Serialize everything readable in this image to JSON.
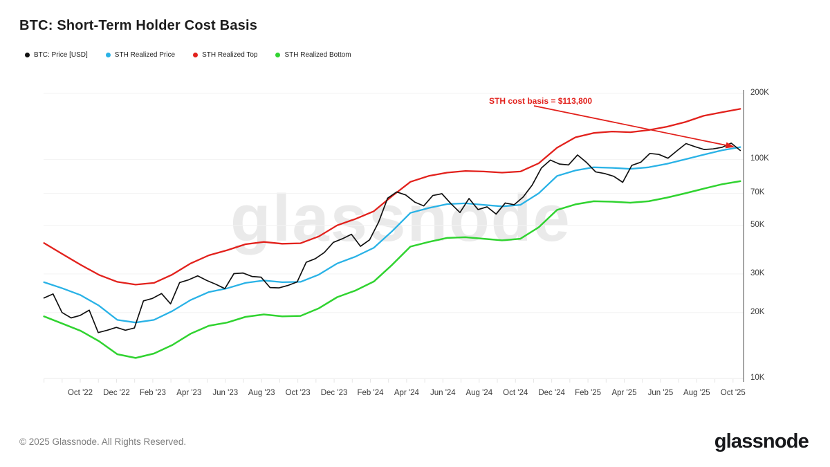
{
  "title": "BTC: Short-Term Holder Cost Basis",
  "watermark": "glassnode",
  "footer": {
    "copyright": "© 2025 Glassnode. All Rights Reserved.",
    "logo_text": "glassnode"
  },
  "chart_data": {
    "type": "line",
    "title": "BTC: Short-Term Holder Cost Basis",
    "x_unit": "months since Aug 2022",
    "y_axis": {
      "scale": "log",
      "unit": "USD",
      "ylim_k": [
        10,
        200
      ],
      "ticks": [
        {
          "label": "200K",
          "value_k": 200
        },
        {
          "label": "100K",
          "value_k": 100
        },
        {
          "label": "70K",
          "value_k": 70
        },
        {
          "label": "50K",
          "value_k": 50
        },
        {
          "label": "30K",
          "value_k": 30
        },
        {
          "label": "20K",
          "value_k": 20
        },
        {
          "label": "10K",
          "value_k": 10
        }
      ]
    },
    "x_axis": {
      "ticks": [
        {
          "label": "Oct '22",
          "month": 2
        },
        {
          "label": "Dec '22",
          "month": 4
        },
        {
          "label": "Feb '23",
          "month": 6
        },
        {
          "label": "Apr '23",
          "month": 8
        },
        {
          "label": "Jun '23",
          "month": 10
        },
        {
          "label": "Aug '23",
          "month": 12
        },
        {
          "label": "Oct '23",
          "month": 14
        },
        {
          "label": "Dec '23",
          "month": 16
        },
        {
          "label": "Feb '24",
          "month": 18
        },
        {
          "label": "Apr '24",
          "month": 20
        },
        {
          "label": "Jun '24",
          "month": 22
        },
        {
          "label": "Aug '24",
          "month": 24
        },
        {
          "label": "Oct '24",
          "month": 26
        },
        {
          "label": "Dec '24",
          "month": 28
        },
        {
          "label": "Feb '25",
          "month": 30
        },
        {
          "label": "Apr '25",
          "month": 32
        },
        {
          "label": "Jun '25",
          "month": 34
        },
        {
          "label": "Aug '25",
          "month": 36
        },
        {
          "label": "Oct '25",
          "month": 38
        }
      ]
    },
    "series": [
      {
        "key": "sth-realized-top",
        "name": "STH Realized Top",
        "color": "#e2211c",
        "width": 2.3,
        "x_start": 0,
        "x_end": 38.4,
        "values_k": [
          41.5,
          37.0,
          33.0,
          29.7,
          27.6,
          26.8,
          27.3,
          29.8,
          33.5,
          36.5,
          38.5,
          41.0,
          42.0,
          41.2,
          41.4,
          44.5,
          50.0,
          53.5,
          58.0,
          68.0,
          79.0,
          84.0,
          87.0,
          88.5,
          88.0,
          87.0,
          88.0,
          96.0,
          113.0,
          126.0,
          132.0,
          134.0,
          133.0,
          136.0,
          141.0,
          148.0,
          158.0,
          164.0,
          170.0
        ]
      },
      {
        "key": "sth-realized-bottom",
        "name": "STH Realized Bottom",
        "color": "#30d330",
        "width": 2.5,
        "x_start": 0,
        "x_end": 38.4,
        "values_k": [
          19.2,
          17.8,
          16.5,
          14.8,
          12.9,
          12.4,
          13.0,
          14.2,
          16.0,
          17.4,
          18.0,
          19.1,
          19.6,
          19.2,
          19.3,
          20.9,
          23.5,
          25.2,
          27.7,
          33.0,
          40.0,
          42.0,
          43.8,
          44.1,
          43.4,
          42.7,
          43.4,
          49.0,
          58.8,
          62.3,
          64.4,
          64.1,
          63.4,
          64.4,
          66.9,
          70.0,
          73.5,
          77.0,
          79.5
        ]
      },
      {
        "key": "sth-realized-price",
        "name": "STH Realized Price",
        "color": "#29b2e6",
        "width": 2.3,
        "x_start": 0,
        "x_end": 38.4,
        "values_k": [
          27.5,
          25.8,
          24.0,
          21.5,
          18.5,
          18.0,
          18.5,
          20.3,
          22.8,
          24.8,
          25.8,
          27.3,
          28.0,
          27.5,
          27.6,
          29.8,
          33.5,
          36.0,
          39.5,
          47.0,
          57.0,
          60.0,
          62.5,
          63.0,
          62.0,
          61.0,
          62.0,
          70.0,
          84.0,
          89.0,
          92.0,
          91.5,
          90.5,
          92.0,
          95.5,
          100.0,
          105.0,
          110.0,
          113.8
        ]
      },
      {
        "key": "btc-price",
        "name": "BTC: Price [USD]",
        "color": "#111111",
        "width": 1.7,
        "x_start": 0,
        "x_end": 38.4,
        "values_k": [
          23.3,
          24.3,
          20.0,
          18.9,
          19.4,
          20.5,
          16.2,
          16.6,
          17.1,
          16.6,
          17.0,
          22.6,
          23.2,
          24.4,
          21.9,
          27.4,
          28.2,
          29.4,
          28.0,
          26.9,
          25.7,
          30.1,
          30.3,
          29.2,
          29.0,
          26.0,
          25.9,
          26.6,
          27.6,
          33.9,
          35.2,
          37.6,
          41.8,
          43.4,
          45.5,
          40.1,
          42.9,
          51.6,
          66.5,
          71.0,
          68.8,
          63.8,
          61.3,
          68.4,
          69.7,
          62.8,
          57.2,
          66.3,
          59.0,
          60.7,
          56.3,
          63.2,
          62.1,
          67.4,
          76.5,
          91.3,
          99.2,
          95.2,
          94.3,
          104.7,
          96.8,
          87.7,
          86.2,
          83.7,
          78.6,
          93.8,
          97.1,
          106.4,
          105.3,
          101.2,
          109.5,
          118.1,
          114.2,
          110.9,
          111.6,
          113.5,
          118.6,
          109.8
        ]
      }
    ],
    "annotation": {
      "text": "STH cost basis = $113,800",
      "value_k": 113.8,
      "color": "#e2211c"
    },
    "legend_position": "top-left",
    "grid": "horizontal-faint"
  }
}
